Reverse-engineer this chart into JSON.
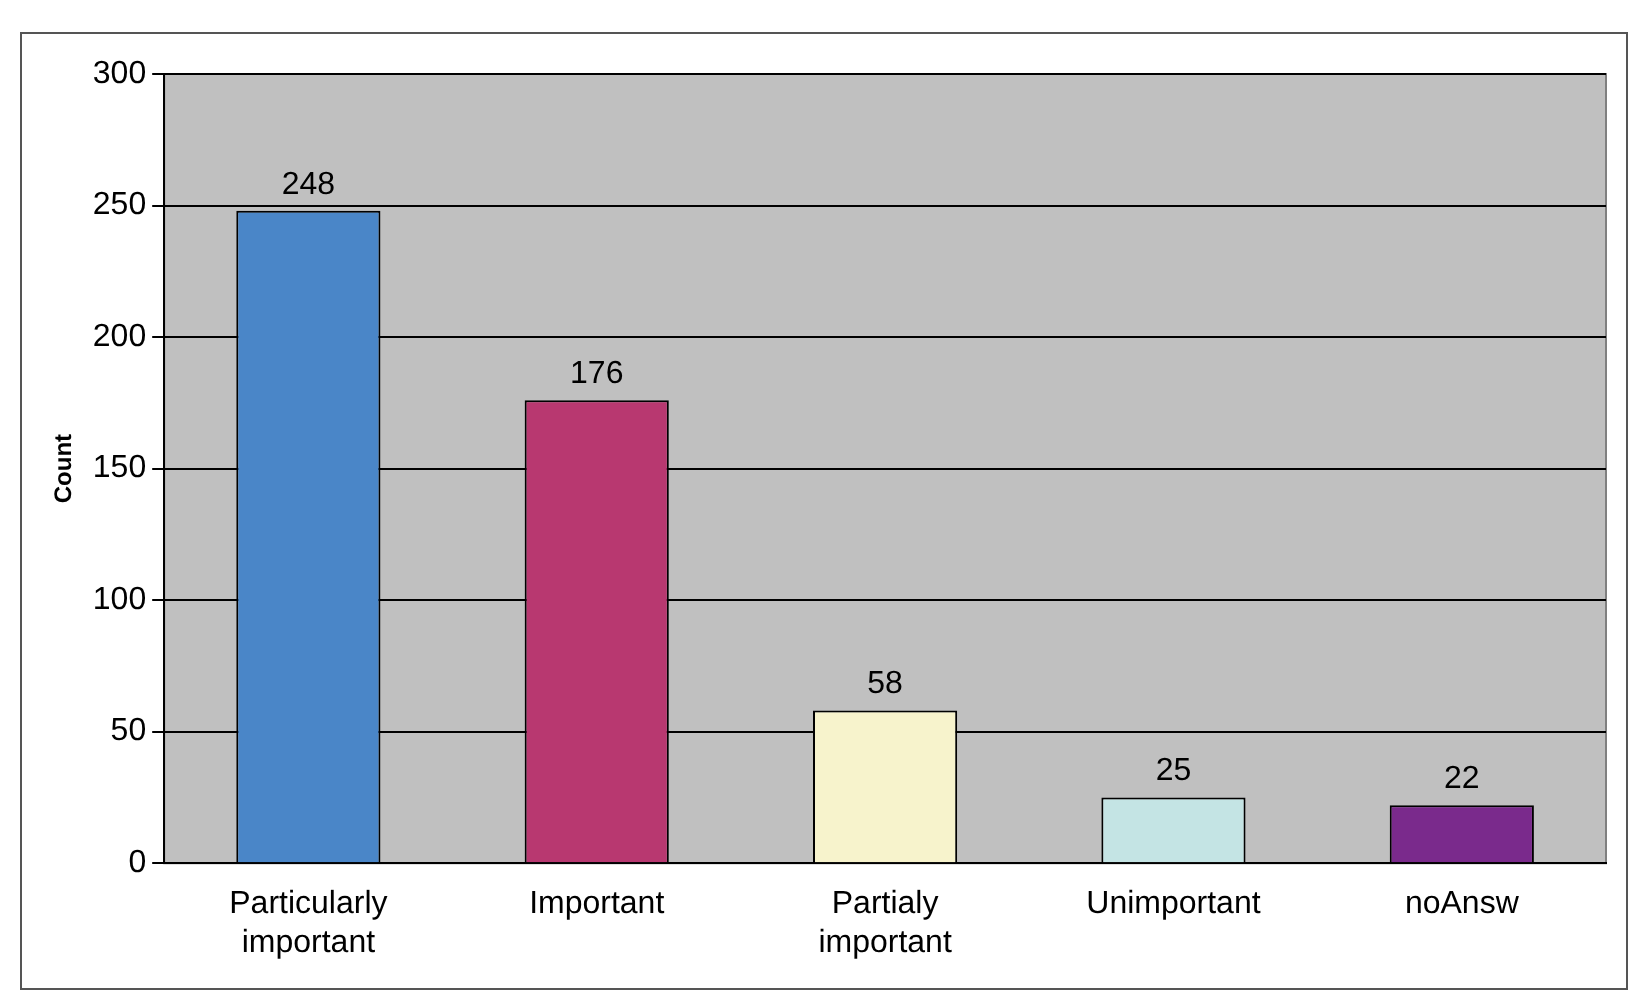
{
  "chart_data": {
    "type": "bar",
    "ylabel": "Count",
    "categories": [
      "Particularly important",
      "Important",
      "Partialy important",
      "Unimportant",
      "noAnsw"
    ],
    "values": [
      248,
      176,
      58,
      25,
      22
    ],
    "colors": [
      "#4a86c8",
      "#b83870",
      "#f7f3cc",
      "#c4e4e4",
      "#7a2a8c"
    ],
    "ylim": [
      0,
      300
    ],
    "yticks": [
      0,
      50,
      100,
      150,
      200,
      250,
      300
    ],
    "grid": "y",
    "legend": false,
    "data_labels": true
  }
}
